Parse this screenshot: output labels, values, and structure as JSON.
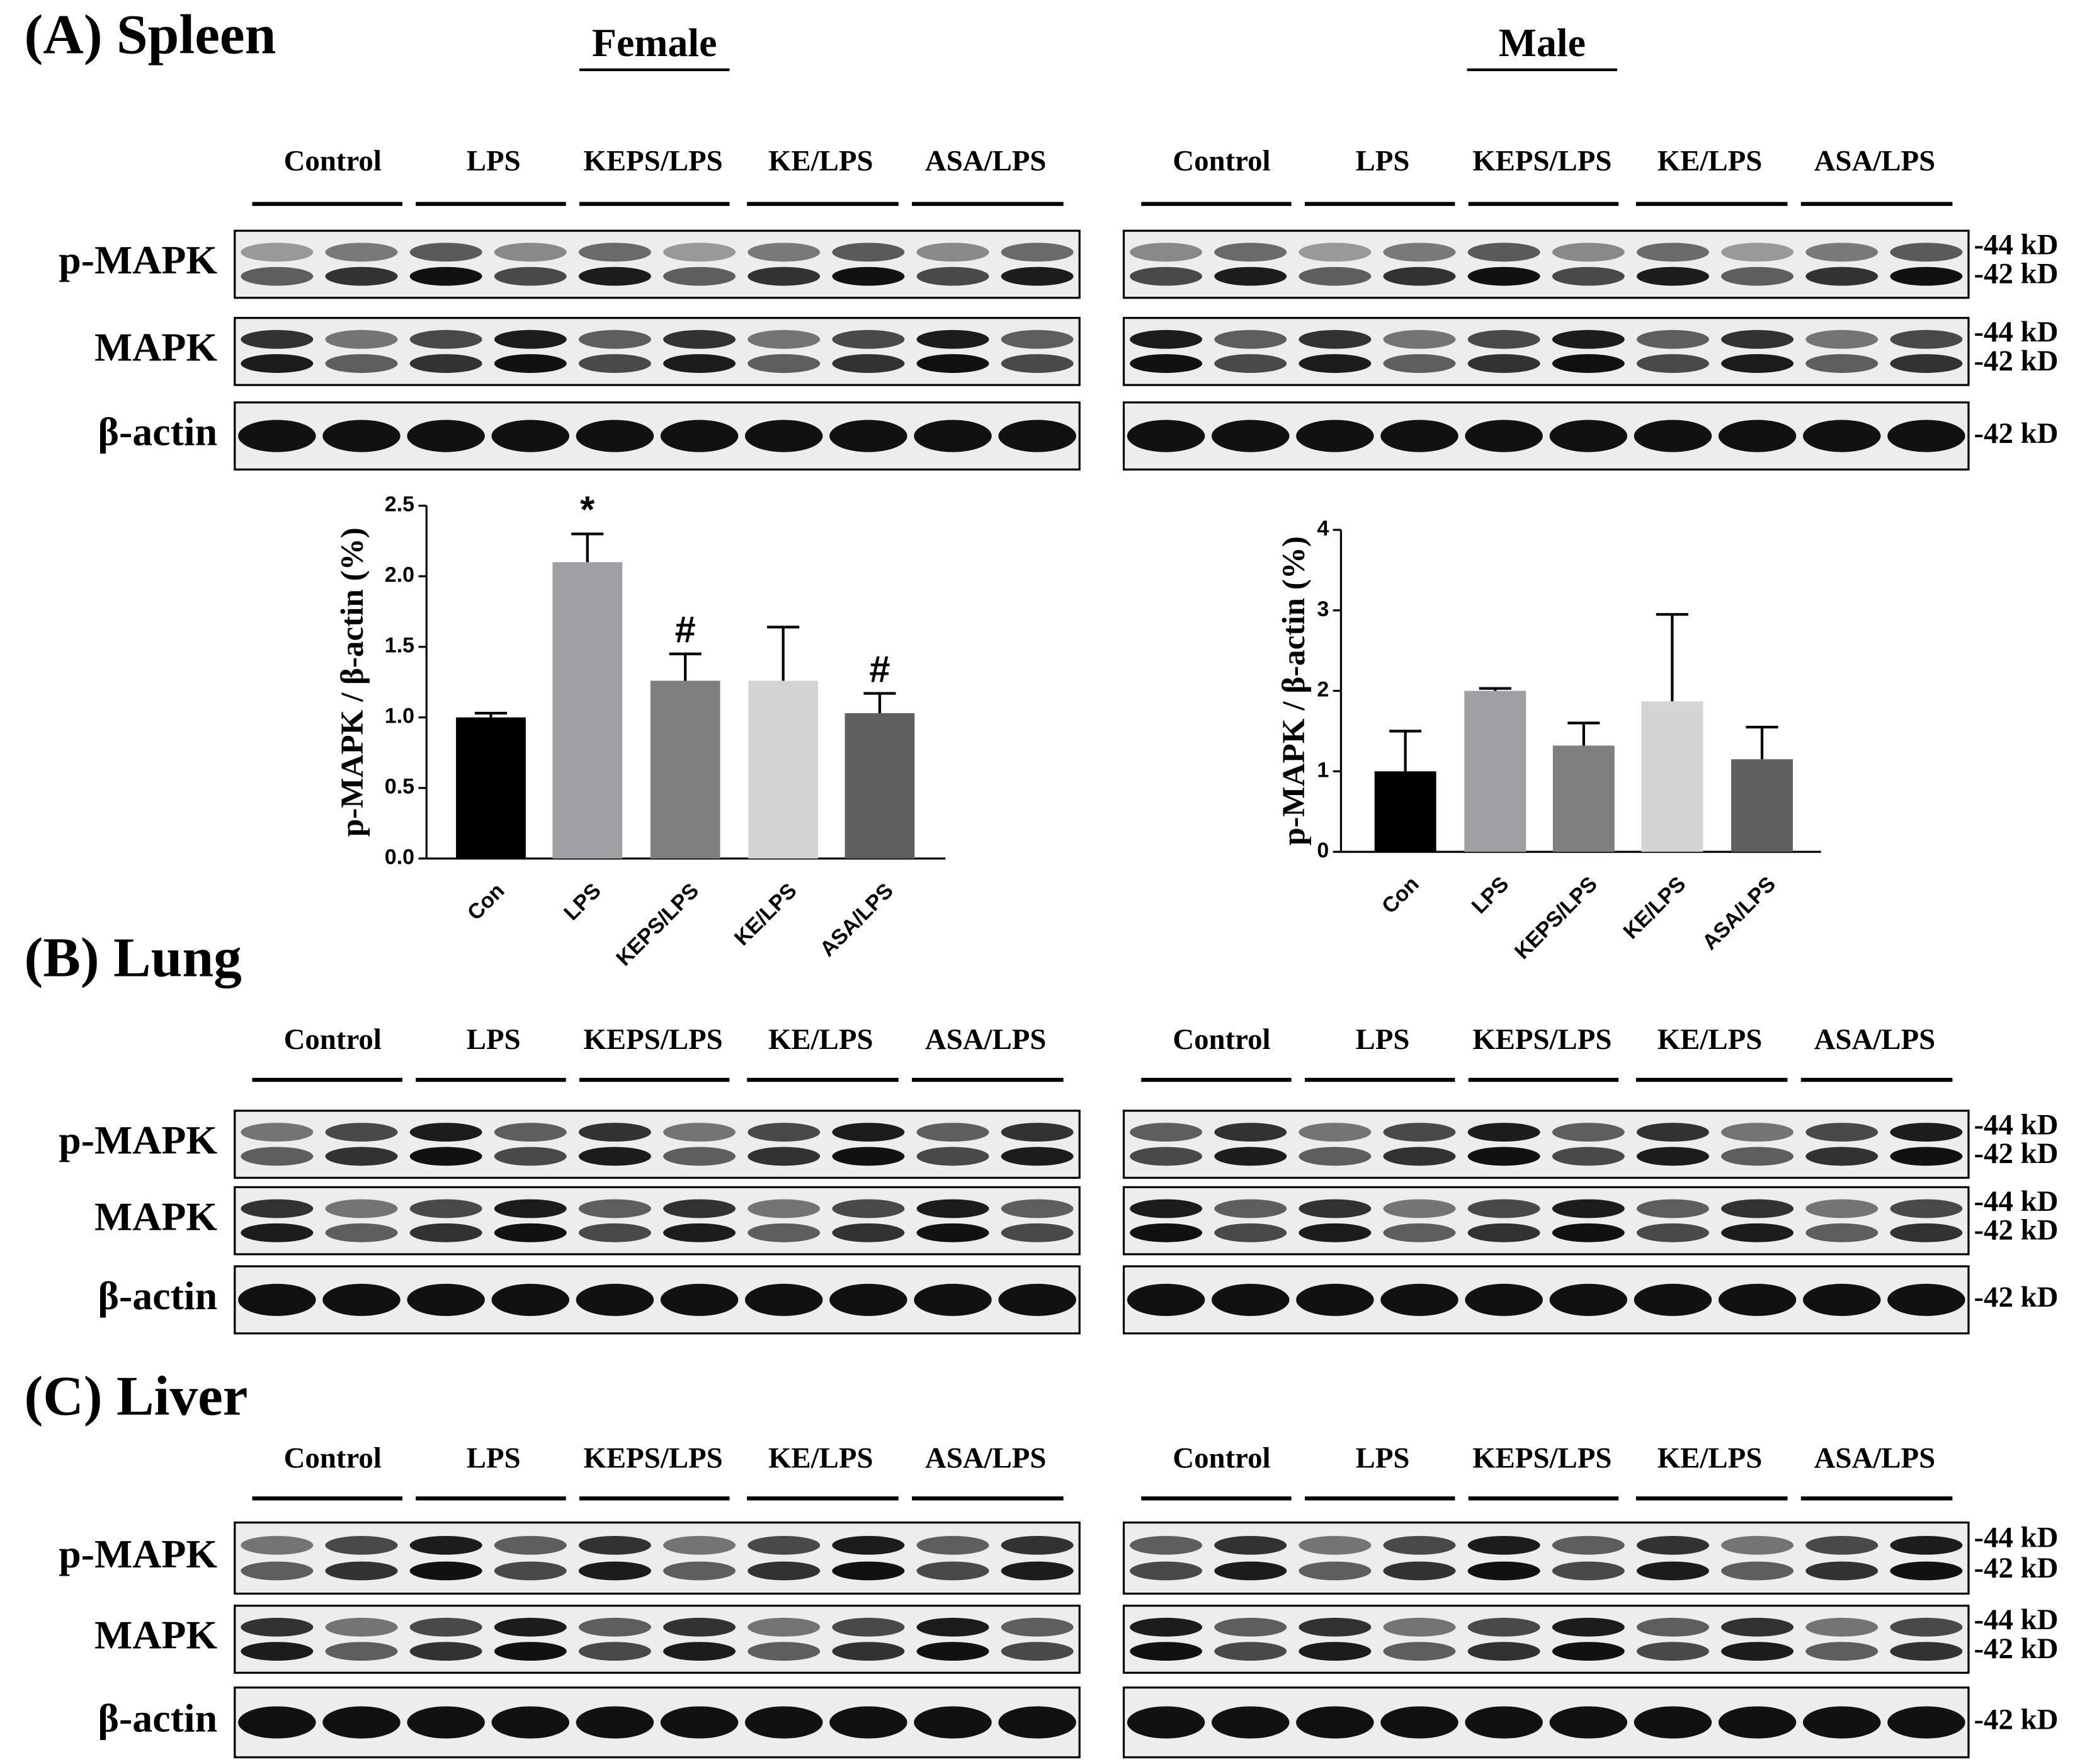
{
  "panels": [
    {
      "title": "(A) Spleen"
    },
    {
      "title": "(B) Lung"
    },
    {
      "title": "(C) Liver"
    }
  ],
  "sex_headers": [
    "Female",
    "Male"
  ],
  "groups": [
    "Control",
    "LPS",
    "KEPS/LPS",
    "KE/LPS",
    "ASA/LPS"
  ],
  "row_labels": [
    "p-MAPK",
    "MAPK",
    "β-actin"
  ],
  "markers": [
    "-44 kD",
    "-42 kD"
  ],
  "chart_data": [
    {
      "type": "bar",
      "y_label": "p-MAPK / β-actin (%)",
      "categories": [
        "Con",
        "LPS",
        "KEPS/LPS",
        "KE/LPS",
        "ASA/LPS"
      ],
      "values": [
        1.0,
        2.1,
        1.26,
        1.26,
        1.03
      ],
      "errors": [
        0.03,
        0.2,
        0.19,
        0.38,
        0.14
      ],
      "annotations": [
        null,
        "*",
        "#",
        null,
        "#"
      ],
      "colors": [
        "#000000",
        "#a0a0a4",
        "#7f7f7f",
        "#d4d4d4",
        "#606060"
      ],
      "ylim": [
        0,
        2.5
      ],
      "yticks": [
        {
          "value": 0,
          "label": "0.0"
        },
        0.5,
        {
          "value": 1,
          "label": "1.0"
        },
        1.5,
        {
          "value": 2,
          "label": "2.0"
        },
        2.5
      ]
    },
    {
      "type": "bar",
      "y_label": "p-MAPK / β-actin (%)",
      "categories": [
        "Con",
        "LPS",
        "KEPS/LPS",
        "KE/LPS",
        "ASA/LPS"
      ],
      "values": [
        1.0,
        2.0,
        1.32,
        1.87,
        1.15
      ],
      "errors": [
        0.5,
        0.03,
        0.28,
        1.08,
        0.4
      ],
      "annotations": [
        null,
        null,
        null,
        null,
        null
      ],
      "colors": [
        "#000000",
        "#a0a0a4",
        "#7f7f7f",
        "#d4d4d4",
        "#606060"
      ],
      "ylim": [
        0,
        4
      ],
      "yticks": [
        0,
        1,
        2,
        3,
        4
      ]
    }
  ]
}
